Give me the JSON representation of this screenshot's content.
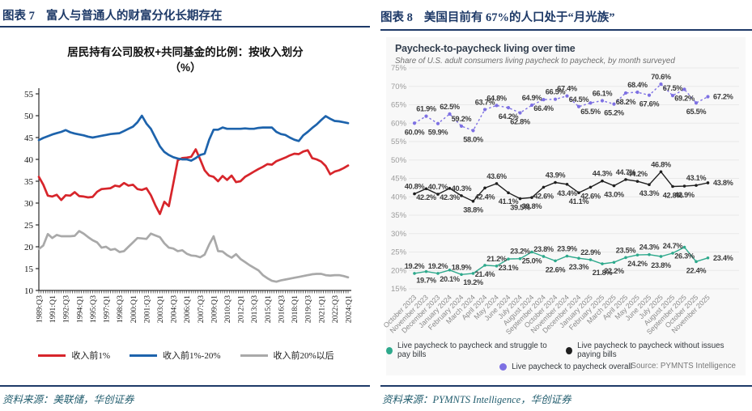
{
  "left_panel": {
    "figure_label": "图表 7",
    "figure_title": "富人与普通人的财富分化长期存在",
    "chart_title_line1": "居民持有公司股权+共同基金的比例：按收入划分",
    "chart_title_line2": "（%）",
    "source_text": "资料来源：美联储，华创证券"
  },
  "right_panel": {
    "figure_label": "图表 8",
    "figure_title": "美国目前有 67%的人口处于“月光族”",
    "card": {
      "title": "Paycheck-to-paycheck living over time",
      "subtitle": "Share of U.S. adult consumers living paycheck to paycheck, by month surveyed",
      "source_note": "Source: PYMNTS Intelligence"
    },
    "source_text": "资料来源：PYMNTS Intelligence，华创证券"
  },
  "chart_data": [
    {
      "type": "line",
      "title": "居民持有公司股权+共同基金的比例：按收入划分（%）",
      "ylim": [
        10,
        55
      ],
      "ytick_step": 5,
      "grid": false,
      "legend_position": "bottom",
      "x_note": "quarterly from 1989:Q3 to 2024:Q1, values sampled every 2 quarters",
      "x_tick_labels": [
        "1989:Q3",
        "1991:Q1",
        "1992:Q3",
        "1994:Q1",
        "1995:Q3",
        "1997:Q1",
        "1998:Q3",
        "2000:Q1",
        "2001:Q3",
        "2003:Q1",
        "2004:Q3",
        "2006:Q1",
        "2007:Q3",
        "2009:Q1",
        "2010:Q3",
        "2012:Q1",
        "2013:Q3",
        "2015:Q1",
        "2016:Q3",
        "2018:Q1",
        "2019:Q3",
        "2021:Q1",
        "2022:Q3",
        "2024:Q1"
      ],
      "series": [
        {
          "name": "收入前1%",
          "color": "#D7252B",
          "values": [
            36.0,
            34.2,
            31.7,
            31.5,
            31.9,
            30.7,
            31.8,
            31.7,
            32.5,
            31.6,
            31.5,
            31.3,
            31.4,
            32.6,
            33.2,
            33.3,
            33.4,
            34.0,
            33.8,
            34.6,
            34.0,
            34.2,
            33.2,
            33.0,
            33.4,
            31.8,
            29.5,
            27.5,
            30.3,
            29.3,
            34.5,
            39.8,
            40.3,
            40.4,
            40.6,
            42.3,
            40.0,
            37.5,
            36.3,
            36.0,
            35.0,
            36.2,
            35.3,
            36.3,
            34.8,
            35.0,
            36.0,
            36.6,
            37.2,
            37.8,
            38.3,
            38.9,
            38.8,
            39.6,
            40.0,
            40.4,
            40.9,
            41.3,
            41.2,
            41.8,
            42.1,
            40.3,
            40.0,
            39.5,
            38.5,
            36.6,
            37.2,
            37.5,
            38.0,
            38.6
          ]
        },
        {
          "name": "收入前1%-20%",
          "color": "#1D63AC",
          "values": [
            44.4,
            44.9,
            45.3,
            45.7,
            46.0,
            46.3,
            46.7,
            46.2,
            45.9,
            45.7,
            45.5,
            45.2,
            45.0,
            45.2,
            45.4,
            45.6,
            45.8,
            45.9,
            46.0,
            46.5,
            47.0,
            47.5,
            48.5,
            50.0,
            48.2,
            47.0,
            45.0,
            43.0,
            41.7,
            41.0,
            40.5,
            40.2,
            40.0,
            40.0,
            39.7,
            40.3,
            41.0,
            41.3,
            44.5,
            46.8,
            46.8,
            47.3,
            47.0,
            47.0,
            47.0,
            47.0,
            47.1,
            47.0,
            47.0,
            47.2,
            47.3,
            47.3,
            47.3,
            46.3,
            45.8,
            45.6,
            45.0,
            44.5,
            44.2,
            45.5,
            46.3,
            47.2,
            48.0,
            49.0,
            49.9,
            49.3,
            48.8,
            48.7,
            48.5,
            48.3
          ]
        },
        {
          "name": "收入前20%以后",
          "color": "#A9A9A9",
          "values": [
            19.5,
            20.3,
            22.9,
            22.0,
            22.7,
            22.4,
            22.4,
            22.4,
            22.5,
            23.6,
            23.0,
            22.2,
            21.5,
            21.0,
            19.8,
            20.0,
            19.3,
            19.5,
            18.8,
            19.0,
            20.0,
            21.0,
            22.0,
            21.9,
            21.8,
            23.0,
            22.6,
            22.2,
            20.8,
            19.8,
            19.6,
            19.0,
            19.2,
            18.4,
            18.0,
            17.9,
            17.6,
            18.2,
            20.5,
            22.4,
            19.0,
            18.9,
            18.1,
            17.5,
            18.3,
            17.2,
            16.5,
            15.8,
            15.2,
            14.6,
            13.5,
            12.8,
            12.2,
            12.0,
            12.3,
            12.5,
            12.7,
            12.9,
            13.1,
            13.3,
            13.5,
            13.7,
            13.8,
            13.8,
            13.5,
            13.4,
            13.5,
            13.5,
            13.3,
            13.0
          ]
        }
      ]
    },
    {
      "type": "line",
      "title": "Paycheck-to-paycheck living over time",
      "subtitle": "Share of U.S. adult consumers living paycheck to paycheck, by month surveyed",
      "ylim": [
        15,
        75
      ],
      "ytick_step": 5,
      "ytick_suffix": "%",
      "grid": true,
      "legend_position": "bottom",
      "source_note": "Source: PYMNTS Intelligence",
      "categories": [
        "October 2023",
        "November 2023",
        "December 2023",
        "January 2024",
        "February 2024",
        "March 2024",
        "April 2024",
        "May 2024",
        "June 2024",
        "July 2024",
        "August 2024",
        "September 2024",
        "October 2024",
        "November 2024",
        "December 2024",
        "January 2025",
        "February 2025",
        "March 2025",
        "April 2025",
        "May 2025",
        "June 2025",
        "July 2025",
        "August 2025",
        "September 2025",
        "October 2025",
        "November 2025"
      ],
      "series": [
        {
          "name": "Live paycheck to paycheck and struggle to pay bills",
          "color": "#2EA98C",
          "dashed": false,
          "values": [
            19.2,
            19.7,
            19.2,
            20.1,
            18.9,
            19.2,
            21.4,
            21.2,
            23.1,
            23.2,
            25.0,
            23.8,
            22.6,
            23.9,
            23.3,
            22.9,
            21.8,
            22.2,
            23.5,
            24.2,
            24.3,
            23.8,
            24.7,
            26.3,
            22.4,
            23.4
          ],
          "label_sides": [
            "A",
            "B",
            "A",
            "B",
            "A",
            "B",
            "B",
            "A",
            "B",
            "A",
            "B",
            "A",
            "B",
            "A",
            "B",
            "A",
            "B",
            "B",
            "A",
            "B",
            "A",
            "B",
            "A",
            "B",
            "B",
            "R"
          ]
        },
        {
          "name": "Live paycheck to paycheck without issues paying bills",
          "color": "#1F1F1F",
          "dashed": false,
          "values": [
            40.8,
            42.2,
            40.7,
            42.3,
            40.3,
            38.8,
            42.4,
            43.6,
            41.1,
            39.5,
            39.8,
            42.6,
            43.9,
            43.4,
            41.1,
            42.6,
            44.3,
            43.0,
            44.7,
            44.2,
            43.3,
            46.8,
            42.8,
            42.9,
            43.1,
            43.8
          ],
          "label_sides": [
            "A",
            "B",
            "A",
            "B",
            "A",
            "B",
            "B",
            "A",
            "B",
            "B",
            "B",
            "B",
            "A",
            "B",
            "B",
            "B",
            "A",
            "B",
            "A",
            "A",
            "B",
            "A",
            "B",
            "B",
            "A",
            "R"
          ]
        },
        {
          "name": "Live paycheck to paycheck overall",
          "color": "#7D70E3",
          "dashed": true,
          "values": [
            60.0,
            61.9,
            59.9,
            62.5,
            59.2,
            58.0,
            63.7,
            64.8,
            64.2,
            62.8,
            64.9,
            66.4,
            66.5,
            67.4,
            64.5,
            65.5,
            66.1,
            65.2,
            68.2,
            68.4,
            67.6,
            70.6,
            67.5,
            69.2,
            65.5,
            67.2
          ],
          "label_sides": [
            "B",
            "A",
            "B",
            "A",
            "A",
            "B",
            "A",
            "A",
            "B",
            "B",
            "A",
            "B",
            "A",
            "A",
            "A",
            "B",
            "A",
            "B",
            "B",
            "A",
            "B",
            "A",
            "A",
            "B",
            "B",
            "R"
          ]
        }
      ]
    }
  ]
}
